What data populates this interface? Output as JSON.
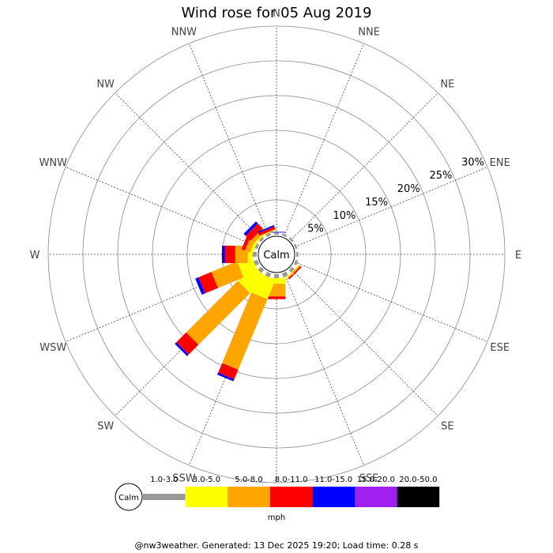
{
  "chart_data": {
    "type": "wind_rose",
    "title": "Wind rose for 05 Aug 2019",
    "units": "mph",
    "calm_label": "Calm",
    "directions": [
      "N",
      "NNE",
      "NE",
      "ENE",
      "E",
      "ESE",
      "SE",
      "SSE",
      "S",
      "SSW",
      "SW",
      "WSW",
      "W",
      "WNW",
      "NW",
      "NNW"
    ],
    "radial_ticks": [
      5,
      10,
      15,
      20,
      25,
      30
    ],
    "radial_tick_labels": [
      "5%",
      "10%",
      "15%",
      "20%",
      "25%",
      "30%"
    ],
    "radial_max": 30,
    "bins": [
      {
        "label": "1.0-3.0",
        "color": "#999999"
      },
      {
        "label": "3.0-5.0",
        "color": "#ffff00"
      },
      {
        "label": "5.0-8.0",
        "color": "#ffa500"
      },
      {
        "label": "8.0-11.0",
        "color": "#ff0000"
      },
      {
        "label": "11.0-15.0",
        "color": "#0000ff"
      },
      {
        "label": "15.0-20.0",
        "color": "#a020f0"
      },
      {
        "label": "20.0-50.0",
        "color": "#000000"
      }
    ],
    "series": [
      {
        "direction": "N",
        "values": [
          0.3,
          0.0,
          0.0,
          0.0,
          0.1,
          0,
          0
        ]
      },
      {
        "direction": "NNE",
        "values": [
          0.3,
          0.0,
          0.0,
          0.0,
          0.0,
          0,
          0
        ]
      },
      {
        "direction": "NE",
        "values": [
          0.3,
          0.0,
          0.0,
          0.0,
          0.0,
          0,
          0
        ]
      },
      {
        "direction": "ENE",
        "values": [
          0.3,
          0.0,
          0.0,
          0.0,
          0.0,
          0,
          0
        ]
      },
      {
        "direction": "E",
        "values": [
          0.3,
          0.0,
          0.0,
          0.0,
          0.0,
          0,
          0
        ]
      },
      {
        "direction": "ESE",
        "values": [
          0.4,
          0.0,
          0.0,
          0.0,
          0.0,
          0,
          0
        ]
      },
      {
        "direction": "SE",
        "values": [
          0.5,
          0.1,
          0.2,
          0.2,
          0.0,
          0,
          0
        ]
      },
      {
        "direction": "SSE",
        "values": [
          0.6,
          0.1,
          0.0,
          0.0,
          0.0,
          0,
          0
        ]
      },
      {
        "direction": "S",
        "values": [
          0.6,
          0.8,
          1.8,
          0.4,
          0.0,
          0,
          0
        ]
      },
      {
        "direction": "SSW",
        "values": [
          0.6,
          3.0,
          11.0,
          1.5,
          0.3,
          0,
          0
        ]
      },
      {
        "direction": "SW",
        "values": [
          0.6,
          3.2,
          10.5,
          2.0,
          0.3,
          0,
          0
        ]
      },
      {
        "direction": "WSW",
        "values": [
          0.6,
          2.2,
          4.0,
          2.0,
          0.5,
          0,
          0
        ]
      },
      {
        "direction": "W",
        "values": [
          0.6,
          0.7,
          1.8,
          1.5,
          0.4,
          0,
          0
        ]
      },
      {
        "direction": "WNW",
        "values": [
          0.4,
          0.4,
          0.8,
          0.5,
          0.0,
          0,
          0
        ]
      },
      {
        "direction": "NW",
        "values": [
          0.4,
          0.2,
          0.6,
          1.0,
          0.4,
          0,
          0
        ]
      },
      {
        "direction": "NNW",
        "values": [
          0.4,
          0.1,
          0.1,
          0.4,
          0.2,
          0,
          0
        ]
      }
    ]
  },
  "footer": "@nw3weather. Generated: 13 Dec 2025 19:20; Load time: 0.28 s"
}
